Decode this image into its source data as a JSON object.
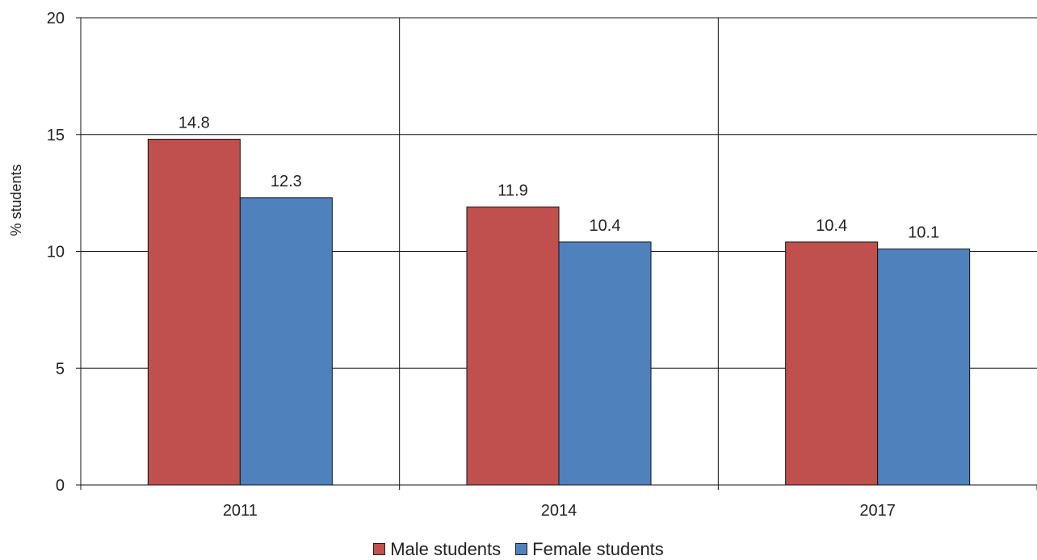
{
  "chart_data": {
    "type": "bar",
    "categories": [
      "2011",
      "2014",
      "2017"
    ],
    "series": [
      {
        "name": "Male students",
        "values": [
          14.8,
          11.9,
          10.4
        ],
        "color": "#c0504d"
      },
      {
        "name": "Female students",
        "values": [
          12.3,
          10.4,
          10.1
        ],
        "color": "#4f81bd"
      }
    ],
    "ylabel": "% students",
    "xlabel": "",
    "ylim": [
      0,
      20
    ],
    "yticks": [
      0,
      5,
      10,
      15,
      20
    ],
    "grid": true,
    "legend_position": "bottom"
  }
}
